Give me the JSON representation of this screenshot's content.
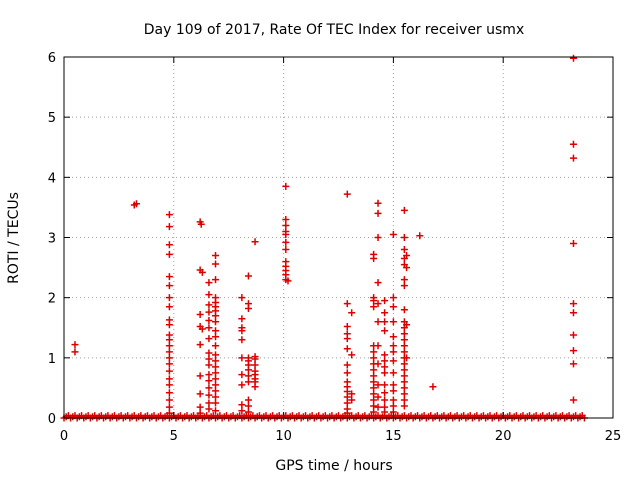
{
  "chart_data": {
    "type": "scatter",
    "title": "Day 109 of 2017, Rate Of TEC Index for receiver usmx",
    "xlabel": "GPS time / hours",
    "ylabel": "ROTI / TECUs",
    "xlim": [
      0,
      25
    ],
    "ylim": [
      0,
      6
    ],
    "xticks": [
      "0",
      "5",
      "10",
      "15",
      "20",
      "25"
    ],
    "yticks": [
      "0",
      "1",
      "2",
      "3",
      "4",
      "5",
      "6"
    ],
    "grid": true,
    "legend": "none",
    "marker": "plus",
    "color": "#dd0000",
    "baseline": {
      "x_start": 0.0,
      "x_end": 23.7,
      "x_step": 0.1,
      "y_values": [
        0.0,
        0.02,
        0.04
      ]
    },
    "series": [
      {
        "points": [
          [
            0.5,
            1.1
          ],
          [
            0.5,
            1.22
          ],
          [
            3.2,
            3.54
          ],
          [
            3.3,
            3.56
          ],
          [
            4.8,
            3.38
          ],
          [
            4.8,
            3.18
          ],
          [
            4.8,
            2.88
          ],
          [
            4.8,
            2.72
          ],
          [
            4.8,
            2.35
          ],
          [
            4.8,
            2.2
          ],
          [
            4.8,
            2.0
          ],
          [
            4.8,
            1.85
          ],
          [
            4.8,
            1.63
          ],
          [
            4.8,
            1.55
          ],
          [
            4.8,
            1.38
          ],
          [
            4.8,
            1.3
          ],
          [
            4.8,
            1.2
          ],
          [
            4.8,
            1.1
          ],
          [
            4.8,
            1.0
          ],
          [
            4.8,
            0.9
          ],
          [
            4.8,
            0.78
          ],
          [
            4.8,
            0.65
          ],
          [
            4.8,
            0.55
          ],
          [
            4.8,
            0.42
          ],
          [
            4.8,
            0.3
          ],
          [
            4.8,
            0.18
          ],
          [
            4.8,
            0.08
          ],
          [
            6.2,
            3.26
          ],
          [
            6.25,
            3.22
          ],
          [
            6.2,
            2.46
          ],
          [
            6.3,
            2.42
          ],
          [
            6.2,
            1.72
          ],
          [
            6.2,
            1.52
          ],
          [
            6.3,
            1.48
          ],
          [
            6.2,
            1.22
          ],
          [
            6.2,
            0.7
          ],
          [
            6.2,
            0.4
          ],
          [
            6.2,
            0.18
          ],
          [
            6.2,
            0.08
          ],
          [
            6.6,
            2.25
          ],
          [
            6.6,
            2.05
          ],
          [
            6.6,
            1.88
          ],
          [
            6.6,
            1.76
          ],
          [
            6.6,
            1.62
          ],
          [
            6.6,
            1.5
          ],
          [
            6.6,
            1.32
          ],
          [
            6.6,
            1.08
          ],
          [
            6.6,
            0.98
          ],
          [
            6.6,
            0.88
          ],
          [
            6.6,
            0.72
          ],
          [
            6.6,
            0.62
          ],
          [
            6.6,
            0.5
          ],
          [
            6.6,
            0.38
          ],
          [
            6.6,
            0.25
          ],
          [
            6.6,
            0.15
          ],
          [
            6.9,
            2.7
          ],
          [
            6.9,
            2.56
          ],
          [
            6.9,
            2.3
          ],
          [
            6.9,
            2.0
          ],
          [
            6.9,
            1.92
          ],
          [
            6.9,
            1.85
          ],
          [
            6.9,
            1.78
          ],
          [
            6.9,
            1.7
          ],
          [
            6.9,
            1.6
          ],
          [
            6.9,
            1.45
          ],
          [
            6.9,
            1.35
          ],
          [
            6.9,
            1.2
          ],
          [
            6.9,
            1.05
          ],
          [
            6.9,
            0.95
          ],
          [
            6.9,
            0.85
          ],
          [
            6.9,
            0.75
          ],
          [
            6.9,
            0.65
          ],
          [
            6.9,
            0.55
          ],
          [
            6.9,
            0.45
          ],
          [
            6.9,
            0.35
          ],
          [
            6.9,
            0.25
          ],
          [
            6.9,
            0.12
          ],
          [
            8.1,
            2.0
          ],
          [
            8.1,
            1.65
          ],
          [
            8.1,
            1.5
          ],
          [
            8.1,
            1.45
          ],
          [
            8.1,
            1.3
          ],
          [
            8.1,
            1.0
          ],
          [
            8.1,
            0.72
          ],
          [
            8.1,
            0.55
          ],
          [
            8.1,
            0.22
          ],
          [
            8.1,
            0.12
          ],
          [
            8.4,
            2.36
          ],
          [
            8.4,
            1.9
          ],
          [
            8.4,
            1.82
          ],
          [
            8.4,
            1.0
          ],
          [
            8.4,
            0.95
          ],
          [
            8.4,
            0.88
          ],
          [
            8.4,
            0.8
          ],
          [
            8.4,
            0.7
          ],
          [
            8.4,
            0.6
          ],
          [
            8.4,
            0.3
          ],
          [
            8.4,
            0.2
          ],
          [
            8.4,
            0.1
          ],
          [
            8.7,
            2.93
          ],
          [
            8.7,
            1.02
          ],
          [
            8.7,
            0.98
          ],
          [
            8.7,
            0.88
          ],
          [
            8.7,
            0.78
          ],
          [
            8.7,
            0.72
          ],
          [
            8.7,
            0.65
          ],
          [
            8.7,
            0.6
          ],
          [
            8.7,
            0.52
          ],
          [
            10.1,
            3.85
          ],
          [
            10.1,
            3.3
          ],
          [
            10.1,
            3.2
          ],
          [
            10.1,
            3.1
          ],
          [
            10.1,
            3.05
          ],
          [
            10.1,
            2.92
          ],
          [
            10.1,
            2.8
          ],
          [
            10.1,
            2.6
          ],
          [
            10.1,
            2.52
          ],
          [
            10.1,
            2.45
          ],
          [
            10.1,
            2.38
          ],
          [
            10.1,
            2.3
          ],
          [
            10.2,
            2.28
          ],
          [
            12.9,
            3.72
          ],
          [
            12.9,
            1.9
          ],
          [
            12.9,
            1.52
          ],
          [
            12.9,
            1.4
          ],
          [
            12.9,
            1.32
          ],
          [
            12.9,
            1.15
          ],
          [
            12.9,
            0.88
          ],
          [
            12.9,
            0.75
          ],
          [
            12.9,
            0.6
          ],
          [
            12.9,
            0.52
          ],
          [
            12.9,
            0.44
          ],
          [
            12.9,
            0.35
          ],
          [
            12.9,
            0.25
          ],
          [
            12.9,
            0.15
          ],
          [
            12.9,
            0.08
          ],
          [
            13.1,
            1.75
          ],
          [
            13.1,
            1.05
          ],
          [
            13.1,
            0.4
          ],
          [
            13.1,
            0.3
          ],
          [
            14.1,
            2.72
          ],
          [
            14.1,
            2.65
          ],
          [
            14.1,
            2.0
          ],
          [
            14.1,
            1.95
          ],
          [
            14.1,
            1.85
          ],
          [
            14.1,
            1.2
          ],
          [
            14.1,
            1.1
          ],
          [
            14.1,
            1.0
          ],
          [
            14.1,
            0.9
          ],
          [
            14.1,
            0.8
          ],
          [
            14.1,
            0.7
          ],
          [
            14.1,
            0.6
          ],
          [
            14.1,
            0.5
          ],
          [
            14.1,
            0.4
          ],
          [
            14.1,
            0.3
          ],
          [
            14.1,
            0.2
          ],
          [
            14.1,
            0.1
          ],
          [
            14.3,
            3.57
          ],
          [
            14.3,
            3.4
          ],
          [
            14.3,
            3.0
          ],
          [
            14.3,
            2.25
          ],
          [
            14.3,
            1.9
          ],
          [
            14.3,
            1.6
          ],
          [
            14.3,
            1.2
          ],
          [
            14.3,
            0.9
          ],
          [
            14.3,
            0.55
          ],
          [
            14.3,
            0.35
          ],
          [
            14.3,
            0.18
          ],
          [
            14.6,
            1.95
          ],
          [
            14.6,
            1.75
          ],
          [
            14.6,
            1.6
          ],
          [
            14.6,
            1.45
          ],
          [
            14.6,
            1.05
          ],
          [
            14.6,
            0.95
          ],
          [
            14.6,
            0.85
          ],
          [
            14.6,
            0.75
          ],
          [
            14.6,
            0.55
          ],
          [
            14.6,
            0.42
          ],
          [
            14.6,
            0.3
          ],
          [
            14.6,
            0.18
          ],
          [
            14.6,
            0.1
          ],
          [
            15.0,
            3.05
          ],
          [
            15.0,
            2.0
          ],
          [
            15.0,
            1.85
          ],
          [
            15.0,
            1.6
          ],
          [
            15.0,
            1.35
          ],
          [
            15.0,
            1.2
          ],
          [
            15.0,
            1.1
          ],
          [
            15.0,
            0.95
          ],
          [
            15.0,
            0.75
          ],
          [
            15.0,
            0.55
          ],
          [
            15.0,
            0.45
          ],
          [
            15.0,
            0.3
          ],
          [
            15.0,
            0.2
          ],
          [
            15.0,
            0.1
          ],
          [
            15.5,
            3.45
          ],
          [
            15.5,
            3.0
          ],
          [
            15.5,
            2.8
          ],
          [
            15.5,
            2.65
          ],
          [
            15.5,
            2.55
          ],
          [
            15.5,
            2.3
          ],
          [
            15.5,
            2.2
          ],
          [
            15.5,
            1.8
          ],
          [
            15.5,
            1.6
          ],
          [
            15.5,
            1.5
          ],
          [
            15.5,
            1.4
          ],
          [
            15.5,
            1.3
          ],
          [
            15.5,
            1.2
          ],
          [
            15.5,
            1.1
          ],
          [
            15.5,
            1.0
          ],
          [
            15.5,
            0.9
          ],
          [
            15.5,
            0.8
          ],
          [
            15.5,
            0.7
          ],
          [
            15.5,
            0.6
          ],
          [
            15.5,
            0.5
          ],
          [
            15.5,
            0.4
          ],
          [
            15.5,
            0.3
          ],
          [
            15.5,
            0.2
          ],
          [
            15.6,
            2.7
          ],
          [
            15.6,
            2.5
          ],
          [
            15.6,
            1.55
          ],
          [
            15.6,
            1.0
          ],
          [
            16.2,
            3.03
          ],
          [
            16.8,
            0.52
          ],
          [
            23.2,
            5.98
          ],
          [
            23.2,
            4.55
          ],
          [
            23.2,
            4.32
          ],
          [
            23.2,
            2.9
          ],
          [
            23.2,
            1.9
          ],
          [
            23.2,
            1.75
          ],
          [
            23.2,
            1.38
          ],
          [
            23.2,
            1.12
          ],
          [
            23.2,
            0.9
          ],
          [
            23.2,
            0.3
          ]
        ]
      }
    ]
  }
}
